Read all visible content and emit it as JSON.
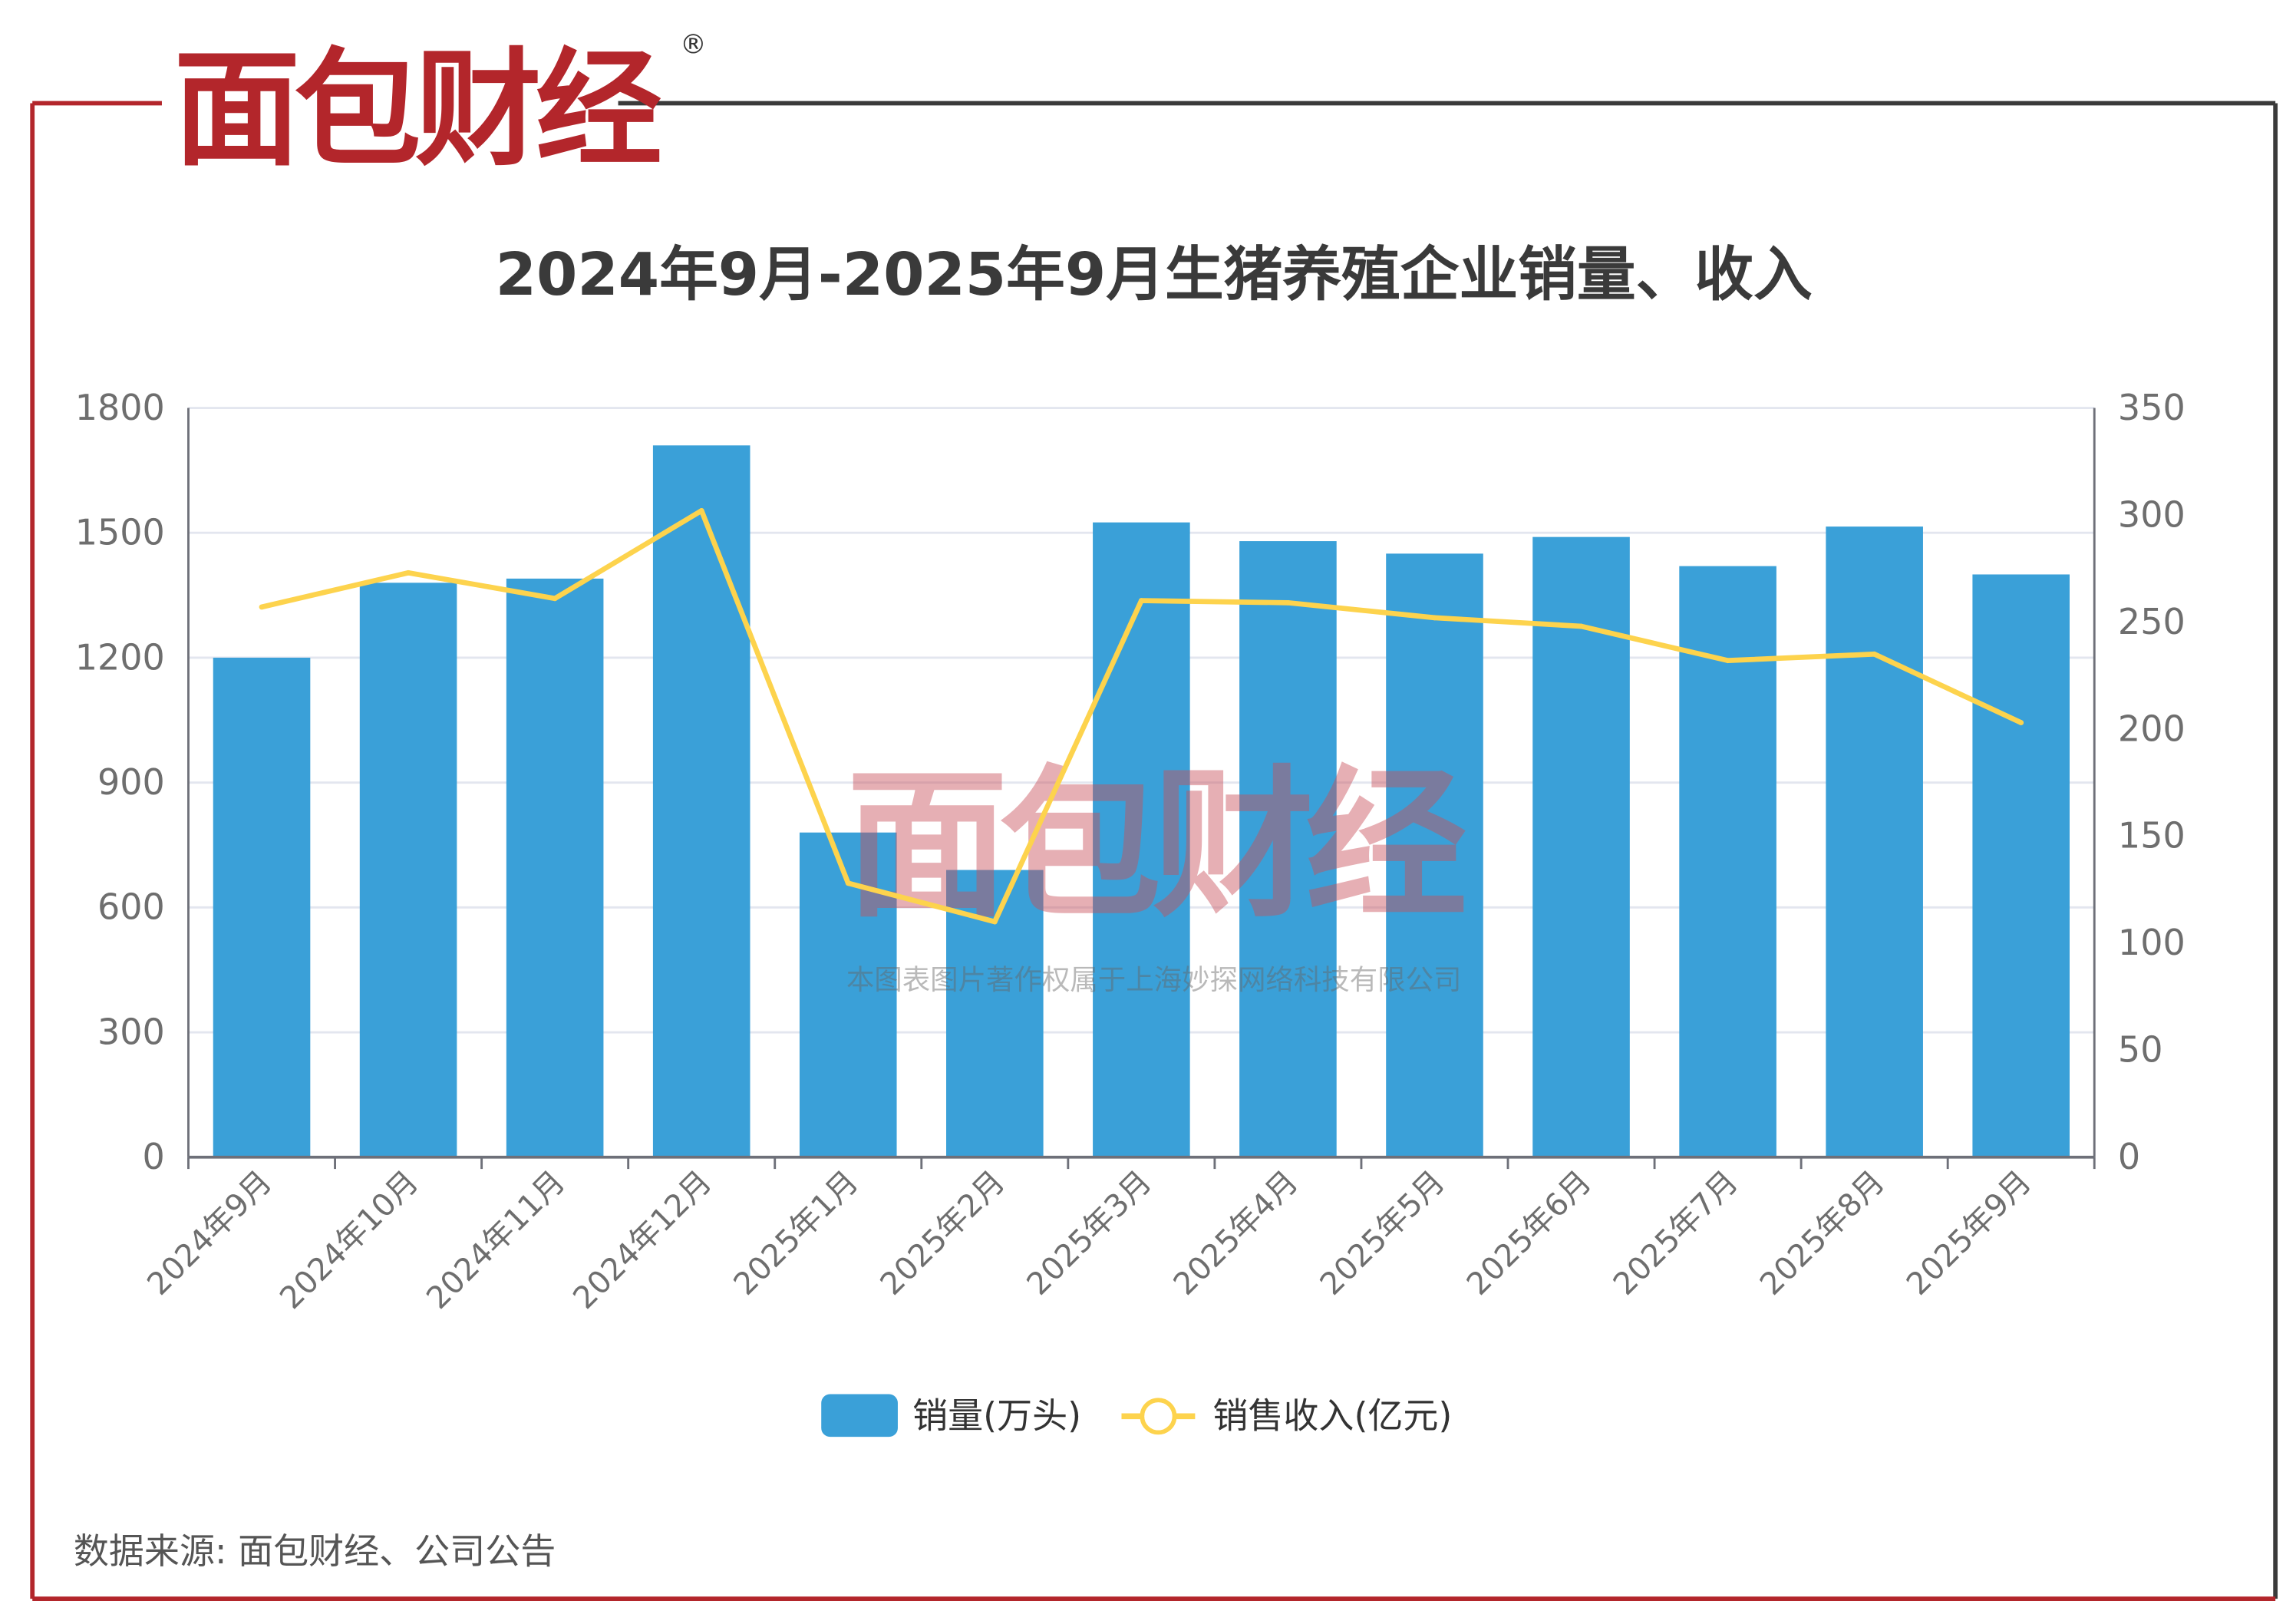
{
  "logo": {
    "text": "面包财经",
    "registered": "®"
  },
  "watermark": {
    "text": "面包财经",
    "caption": "本图表图片著作权属于上海妙探网络科技有限公司"
  },
  "colors": {
    "bar": "#3aa0d8",
    "line": "#fdd34d",
    "frame_red": "#b3262b",
    "frame_dark": "#3a3a3a"
  },
  "source": "数据来源: 面包财经、公司公告",
  "chart_data": {
    "type": "bar+line",
    "title": "2024年9月-2025年9月生猪养殖企业销量、收入",
    "categories": [
      "2024年9月",
      "2024年10月",
      "2024年11月",
      "2024年12月",
      "2025年1月",
      "2025年2月",
      "2025年3月",
      "2025年4月",
      "2025年5月",
      "2025年6月",
      "2025年7月",
      "2025年8月",
      "2025年9月"
    ],
    "series": [
      {
        "name": "销量(万头)",
        "type": "bar",
        "axis": "left",
        "values": [
          1200,
          1380,
          1390,
          1710,
          780,
          690,
          1525,
          1480,
          1450,
          1490,
          1420,
          1515,
          1400
        ]
      },
      {
        "name": "销售收入(亿元)",
        "type": "line",
        "axis": "right",
        "values": [
          257,
          273,
          261,
          302,
          128,
          110,
          260,
          259,
          252,
          248,
          232,
          235,
          203
        ]
      }
    ],
    "y_left": {
      "range": [
        0,
        1800
      ],
      "ticks": [
        "0",
        "300",
        "600",
        "900",
        "1200",
        "1500",
        "1800"
      ]
    },
    "y_right": {
      "range": [
        0,
        350
      ],
      "ticks": [
        "0",
        "50",
        "100",
        "150",
        "200",
        "250",
        "300",
        "350"
      ]
    },
    "grid": true,
    "legend": "bottom"
  }
}
